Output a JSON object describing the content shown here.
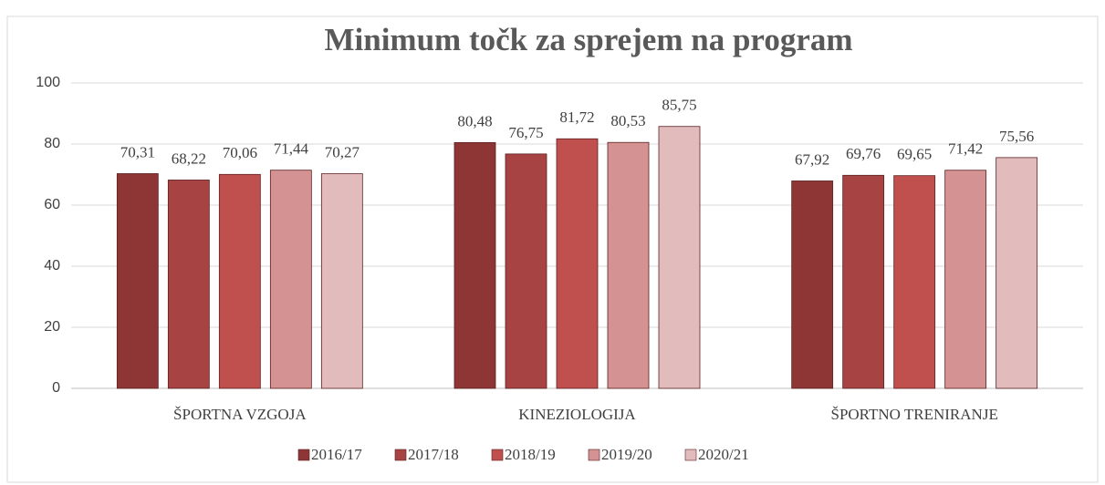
{
  "chart_data": {
    "type": "bar",
    "title": "Minimum točk za sprejem na program",
    "categories": [
      "ŠPORTNA VZGOJA",
      "KINEZIOLOGIJA",
      "ŠPORTNO TRENIRANJE"
    ],
    "series": [
      {
        "name": "2016/17",
        "color": "#8e3636",
        "values": [
          70.31,
          80.48,
          67.92
        ],
        "value_labels": [
          "70,31",
          "80,48",
          "67,92"
        ]
      },
      {
        "name": "2017/18",
        "color": "#a84343",
        "values": [
          68.22,
          76.75,
          69.76
        ],
        "value_labels": [
          "68,22",
          "76,75",
          "69,76"
        ]
      },
      {
        "name": "2018/19",
        "color": "#c0504d",
        "values": [
          70.06,
          81.72,
          69.65
        ],
        "value_labels": [
          "70,06",
          "81,72",
          "69,65"
        ]
      },
      {
        "name": "2019/20",
        "color": "#d49292",
        "values": [
          71.44,
          80.53,
          71.42
        ],
        "value_labels": [
          "71,44",
          "80,53",
          "71,42"
        ]
      },
      {
        "name": "2020/21",
        "color": "#e2bcbc",
        "values": [
          70.27,
          85.75,
          75.56
        ],
        "value_labels": [
          "70,27",
          "85,75",
          "75,56"
        ]
      }
    ],
    "ylim": [
      0,
      100
    ],
    "yticks": [
      0,
      20,
      40,
      60,
      80,
      100
    ],
    "grid": true,
    "legend": "bottom"
  }
}
